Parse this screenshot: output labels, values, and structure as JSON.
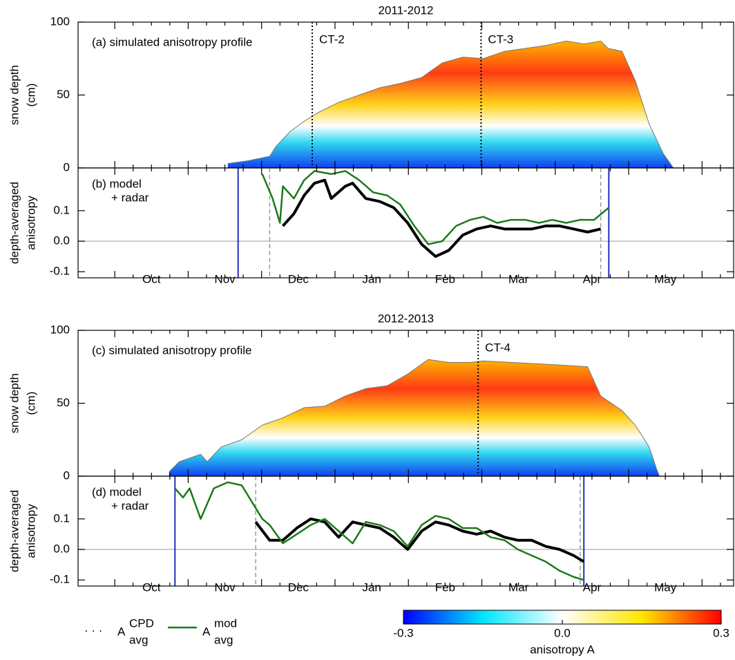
{
  "chart_data": [
    {
      "type": "profile",
      "title": "2011-2012",
      "annotation": "(a)  simulated anisotropy profile",
      "ylabel": [
        "snow depth",
        "(cm)"
      ],
      "xlim": [
        0.5,
        9.43
      ],
      "ylim": [
        0,
        100
      ],
      "yticks": [
        0,
        50,
        100
      ],
      "markers": [
        {
          "label": "CT-2",
          "x": 3.69
        },
        {
          "label": "CT-3",
          "x": 5.99
        }
      ],
      "x": [
        2.54,
        2.82,
        3.11,
        3.2,
        3.39,
        3.58,
        3.77,
        4.05,
        4.33,
        4.61,
        4.89,
        5.18,
        5.46,
        5.74,
        6.02,
        6.31,
        6.59,
        6.87,
        7.15,
        7.39,
        7.62,
        7.72,
        7.91,
        8.09,
        8.28,
        8.47,
        8.61
      ],
      "values": [
        3,
        5,
        8,
        15,
        25,
        32,
        38,
        45,
        50,
        55,
        58,
        62,
        72,
        76,
        75,
        80,
        82,
        84,
        87,
        85,
        87,
        82,
        80,
        60,
        30,
        10,
        0
      ]
    },
    {
      "type": "line",
      "annotation": [
        "(b)  model",
        "+ radar"
      ],
      "ylabel": [
        "depth-averaged",
        "anisotropy"
      ],
      "xlim": [
        0.5,
        9.43
      ],
      "ylim": [
        -0.12,
        0.24
      ],
      "yticks": [
        -0.1,
        {
          "value": 0,
          "label": "0.0"
        },
        0.1
      ],
      "xticks": [
        {
          "value": 1.5,
          "label": "Oct"
        },
        {
          "value": 2.5,
          "label": "Nov"
        },
        {
          "value": 3.5,
          "label": "Dec"
        },
        {
          "value": 4.5,
          "label": "Jan"
        },
        {
          "value": 5.5,
          "label": "Feb"
        },
        {
          "value": 6.5,
          "label": "Mar"
        },
        {
          "value": 7.5,
          "label": "Apr"
        },
        {
          "value": 8.5,
          "label": "May"
        }
      ],
      "vlines": [
        {
          "x": 2.68,
          "color": "#1f2fbf"
        },
        {
          "x": 7.73,
          "color": "#1f2fbf"
        },
        {
          "x": 3.11,
          "color": "#999999"
        },
        {
          "x": 7.62,
          "color": "#999999"
        }
      ],
      "series": [
        {
          "name": "A",
          "name_sup": "CPD",
          "name_sub": "avg",
          "color": "#000000",
          "x": [
            3.29,
            3.44,
            3.58,
            3.72,
            3.86,
            3.95,
            4.14,
            4.24,
            4.42,
            4.61,
            4.8,
            4.99,
            5.18,
            5.37,
            5.55,
            5.74,
            5.93,
            6.12,
            6.31,
            6.49,
            6.68,
            6.87,
            7.06,
            7.25,
            7.44,
            7.62
          ],
          "values": [
            0.05,
            0.09,
            0.15,
            0.19,
            0.2,
            0.14,
            0.18,
            0.19,
            0.14,
            0.13,
            0.11,
            0.06,
            -0.01,
            -0.05,
            -0.03,
            0.02,
            0.04,
            0.05,
            0.04,
            0.04,
            0.04,
            0.05,
            0.05,
            0.04,
            0.03,
            0.04
          ]
        },
        {
          "name": "A",
          "name_sup": "mod",
          "name_sub": "avg",
          "color": "#1a7a1a",
          "x": [
            3.01,
            3.15,
            3.25,
            3.29,
            3.44,
            3.58,
            3.72,
            3.95,
            4.14,
            4.33,
            4.52,
            4.71,
            4.89,
            5.08,
            5.27,
            5.46,
            5.65,
            5.84,
            6.02,
            6.21,
            6.4,
            6.59,
            6.78,
            6.96,
            7.15,
            7.34,
            7.53,
            7.73
          ],
          "values": [
            0.22,
            0.14,
            0.06,
            0.18,
            0.14,
            0.2,
            0.23,
            0.22,
            0.23,
            0.2,
            0.16,
            0.15,
            0.12,
            0.05,
            -0.01,
            0.0,
            0.05,
            0.07,
            0.08,
            0.06,
            0.07,
            0.07,
            0.06,
            0.07,
            0.06,
            0.07,
            0.07,
            0.11
          ]
        }
      ]
    },
    {
      "type": "profile",
      "title": "2012-2013",
      "annotation": "(c)  simulated anisotropy profile",
      "ylabel": [
        "snow depth",
        "(cm)"
      ],
      "xlim": [
        0.5,
        9.43
      ],
      "ylim": [
        0,
        100
      ],
      "yticks": [
        0,
        50,
        100
      ],
      "markers": [
        {
          "label": "CT-4",
          "x": 5.95
        }
      ],
      "x": [
        1.74,
        1.88,
        2.17,
        2.26,
        2.45,
        2.73,
        3.01,
        3.29,
        3.58,
        3.86,
        4.14,
        4.42,
        4.71,
        4.99,
        5.27,
        5.55,
        5.84,
        6.02,
        6.4,
        6.78,
        7.15,
        7.44,
        7.62,
        7.91,
        8.09,
        8.28,
        8.38,
        8.42
      ],
      "values": [
        3,
        10,
        15,
        10,
        20,
        25,
        35,
        40,
        47,
        48,
        55,
        60,
        62,
        70,
        80,
        78,
        78,
        79,
        78,
        77,
        76,
        75,
        55,
        45,
        35,
        20,
        5,
        0
      ]
    },
    {
      "type": "line",
      "annotation": [
        "(d)  model",
        "+ radar"
      ],
      "ylabel": [
        "depth-averaged",
        "anisotropy"
      ],
      "xlim": [
        0.5,
        9.43
      ],
      "ylim": [
        -0.12,
        0.24
      ],
      "yticks": [
        -0.1,
        {
          "value": 0,
          "label": "0.0"
        },
        0.1
      ],
      "xticks": [
        {
          "value": 1.5,
          "label": "Oct"
        },
        {
          "value": 2.5,
          "label": "Nov"
        },
        {
          "value": 3.5,
          "label": "Dec"
        },
        {
          "value": 4.5,
          "label": "Jan"
        },
        {
          "value": 5.5,
          "label": "Feb"
        },
        {
          "value": 6.5,
          "label": "Mar"
        },
        {
          "value": 7.5,
          "label": "Apr"
        },
        {
          "value": 8.5,
          "label": "May"
        }
      ],
      "vlines": [
        {
          "x": 1.82,
          "color": "#1f2fbf"
        },
        {
          "x": 7.39,
          "color": "#1f2fbf"
        },
        {
          "x": 2.92,
          "color": "#999999"
        },
        {
          "x": 7.34,
          "color": "#999999"
        }
      ],
      "series": [
        {
          "color": "#000000",
          "x": [
            2.92,
            3.11,
            3.29,
            3.48,
            3.67,
            3.86,
            4.05,
            4.24,
            4.42,
            4.61,
            4.8,
            4.99,
            5.18,
            5.37,
            5.55,
            5.74,
            5.93,
            6.12,
            6.31,
            6.49,
            6.68,
            6.87,
            7.06,
            7.25,
            7.39
          ],
          "values": [
            0.09,
            0.03,
            0.03,
            0.07,
            0.1,
            0.09,
            0.04,
            0.09,
            0.08,
            0.07,
            0.04,
            0.0,
            0.06,
            0.09,
            0.08,
            0.06,
            0.05,
            0.06,
            0.04,
            0.03,
            0.03,
            0.01,
            0.0,
            -0.02,
            -0.04
          ]
        },
        {
          "color": "#1a7a1a",
          "x": [
            1.82,
            1.93,
            2.02,
            2.17,
            2.26,
            2.35,
            2.54,
            2.73,
            3.01,
            3.11,
            3.29,
            3.48,
            3.67,
            3.86,
            4.05,
            4.24,
            4.42,
            4.61,
            4.8,
            4.99,
            5.18,
            5.37,
            5.55,
            5.74,
            5.93,
            6.12,
            6.31,
            6.49,
            6.68,
            6.87,
            7.06,
            7.25,
            7.39
          ],
          "values": [
            0.2,
            0.17,
            0.2,
            0.1,
            0.15,
            0.2,
            0.22,
            0.21,
            0.1,
            0.08,
            0.02,
            0.05,
            0.08,
            0.1,
            0.06,
            0.02,
            0.09,
            0.08,
            0.06,
            0.01,
            0.08,
            0.11,
            0.1,
            0.07,
            0.07,
            0.04,
            0.03,
            0.0,
            -0.02,
            -0.04,
            -0.07,
            -0.09,
            -0.1
          ]
        }
      ]
    },
    {
      "type": "colorbar",
      "label": "anisotropy A",
      "clim": [
        -0.3,
        0.3
      ],
      "ticks": [
        -0.3,
        {
          "value": 0,
          "label": "0.0"
        },
        0.3
      ],
      "colors": [
        "#0000ff",
        "#00e5ff",
        "#ffffff",
        "#ffe600",
        "#ff0000"
      ]
    }
  ]
}
